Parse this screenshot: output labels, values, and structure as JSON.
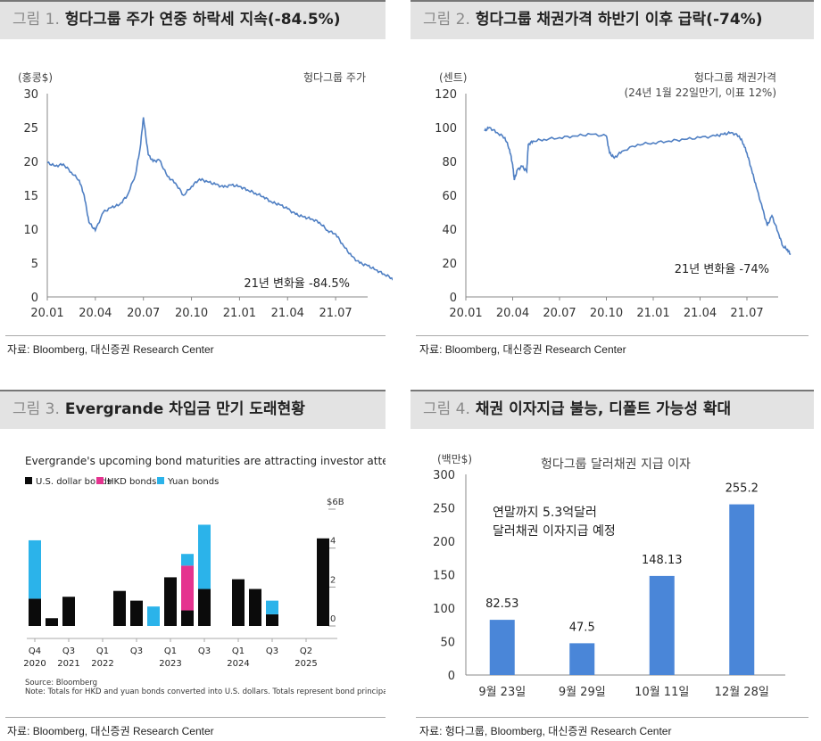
{
  "fig1": {
    "num": "그림 1.",
    "title": "헝다그룹 주가 연중 하락세 지속(-84.5%)",
    "source": "자료: Bloomberg, 대신증권 Research Center",
    "chart_data": {
      "type": "line",
      "ylabel": "(홍콩$)",
      "legend": "헝다그룹 주가",
      "annotation": "21년 변화율 -84.5%",
      "ylim": [
        0,
        30
      ],
      "yticks": [
        0,
        5,
        10,
        15,
        20,
        25,
        30
      ],
      "xticks": [
        "20.01",
        "20.04",
        "20.07",
        "20.10",
        "21.01",
        "21.04",
        "21.07"
      ],
      "x": [
        0,
        0.5,
        1,
        1.5,
        2,
        2.3,
        2.6,
        3,
        3.5,
        4,
        4.5,
        5,
        5.5,
        5.8,
        6,
        6.3,
        6.6,
        7,
        7.5,
        8,
        8.5,
        9,
        9.5,
        10,
        10.5,
        11,
        11.5,
        12,
        12.5,
        13,
        13.5,
        14,
        14.5,
        15,
        15.5,
        16,
        16.5,
        17,
        17.5,
        18,
        18.5,
        19,
        19.5,
        20,
        20.5,
        21,
        21.5,
        21.8
      ],
      "y": [
        19.8,
        19.3,
        19.6,
        18.4,
        17.2,
        15.0,
        11.0,
        9.8,
        12.5,
        13.2,
        13.6,
        15.0,
        18.0,
        22.0,
        26.5,
        21.0,
        20.0,
        20.2,
        17.8,
        16.8,
        15.0,
        16.3,
        17.4,
        17.0,
        16.6,
        16.2,
        16.5,
        16.3,
        15.8,
        15.3,
        14.8,
        14.0,
        13.6,
        13.0,
        12.2,
        11.8,
        11.5,
        11.0,
        9.8,
        9.3,
        7.5,
        6.0,
        5.0,
        4.6,
        4.0,
        3.4,
        2.8,
        2.4
      ]
    }
  },
  "fig2": {
    "num": "그림 2.",
    "title": "헝다그룹 채권가격 하반기 이후 급락(-74%)",
    "source": "자료: Bloomberg, 대신증권 Research Center",
    "chart_data": {
      "type": "line",
      "ylabel": "(센트)",
      "legend": "헝다그룹 채권가격",
      "legend2": "(24년 1월 22일만기, 이표 12%)",
      "annotation": "21년 변화율 -74%",
      "ylim": [
        0,
        120
      ],
      "yticks": [
        0,
        20,
        40,
        60,
        80,
        100,
        120
      ],
      "xticks": [
        "20.01",
        "20.04",
        "20.07",
        "20.10",
        "21.01",
        "21.04",
        "21.07"
      ],
      "x": [
        1.2,
        1.5,
        2,
        2.5,
        2.8,
        3.0,
        3.1,
        3.3,
        3.6,
        3.9,
        4.0,
        4.3,
        5,
        6,
        7,
        8,
        9,
        9.2,
        9.5,
        10,
        11,
        12,
        13,
        14,
        15,
        16,
        16.5,
        17,
        17.5,
        17.8,
        18,
        18.3,
        18.6,
        19,
        19.3,
        19.6,
        20,
        20.3,
        20.6,
        20.8
      ],
      "y": [
        98,
        100,
        97,
        94,
        87,
        78,
        69,
        75,
        77,
        74,
        90,
        92,
        93,
        94,
        95,
        96,
        95,
        85,
        82,
        86,
        90,
        91,
        92,
        93,
        94,
        95,
        96,
        97,
        95,
        90,
        85,
        75,
        65,
        52,
        42,
        48,
        38,
        30,
        28,
        25
      ]
    }
  },
  "fig3": {
    "num": "그림 3.",
    "title": "Evergrande 차입금 만기 도래현황",
    "source": "자료: Bloomberg, 대신증권 Research Center",
    "chart_data": {
      "type": "bar",
      "title": "Evergrande's upcoming bond maturities are attracting investor attention",
      "legend": [
        "U.S. dollar bonds",
        "HKD bonds",
        "Yuan bonds"
      ],
      "colors": {
        "usd": "#0b0b0b",
        "hkd": "#e5338f",
        "yuan": "#2bb3ea"
      },
      "ylim": [
        0,
        6
      ],
      "yticks": [
        "0",
        "2",
        "4",
        "$6B"
      ],
      "xlabels": [
        [
          "Q4",
          "2020"
        ],
        [
          "Q3",
          "2021"
        ],
        [
          "Q1",
          "2022"
        ],
        [
          "Q3",
          ""
        ],
        [
          "Q1",
          "2023"
        ],
        [
          "Q3",
          ""
        ],
        [
          "Q1",
          "2024"
        ],
        [
          "Q3",
          ""
        ],
        [
          "Q2",
          "2025"
        ]
      ],
      "series": [
        {
          "name": "U.S. dollar bonds",
          "values": [
            1.4,
            0.4,
            1.5,
            0,
            0,
            1.8,
            1.3,
            0,
            2.5,
            0.8,
            1.9,
            0,
            2.4,
            1.9,
            0.6,
            0,
            0,
            4.5
          ]
        },
        {
          "name": "HKD bonds",
          "values": [
            0,
            0,
            0,
            0,
            0,
            0,
            0,
            0,
            0,
            2.3,
            0,
            0,
            0,
            0,
            0,
            0,
            0,
            0
          ]
        },
        {
          "name": "Yuan bonds",
          "values": [
            3.0,
            0,
            0,
            0,
            0,
            0,
            0,
            1.0,
            0,
            0.6,
            3.3,
            0,
            0,
            0,
            0.7,
            0,
            0,
            0
          ]
        }
      ],
      "note1": "Source: Bloomberg",
      "note2": "Note: Totals for HKD and yuan bonds converted into U.S. dollars. Totals represent bond principals."
    }
  },
  "fig4": {
    "num": "그림 4.",
    "title": "채권 이자지급 불능, 디폴트 가능성 확대",
    "source": "자료: 헝다그룹, Bloomberg, 대신증권 Research Center",
    "chart_data": {
      "type": "bar",
      "title": "헝다그룹 달러채권 지급 이자",
      "ylabel": "(백만$)",
      "annotation": [
        "연말까지 5.3억달러",
        "달러채권 이자지급 예정"
      ],
      "categories": [
        "9월 23일",
        "9월 29일",
        "10월 11일",
        "12월 28일"
      ],
      "values": [
        82.53,
        47.5,
        148.13,
        255.2
      ],
      "labels": [
        "82.53",
        "47.5",
        "148.13",
        "255.2"
      ],
      "ylim": [
        0,
        300
      ],
      "yticks": [
        0,
        50,
        100,
        150,
        200,
        250,
        300
      ],
      "color": "#4a86d8"
    }
  }
}
